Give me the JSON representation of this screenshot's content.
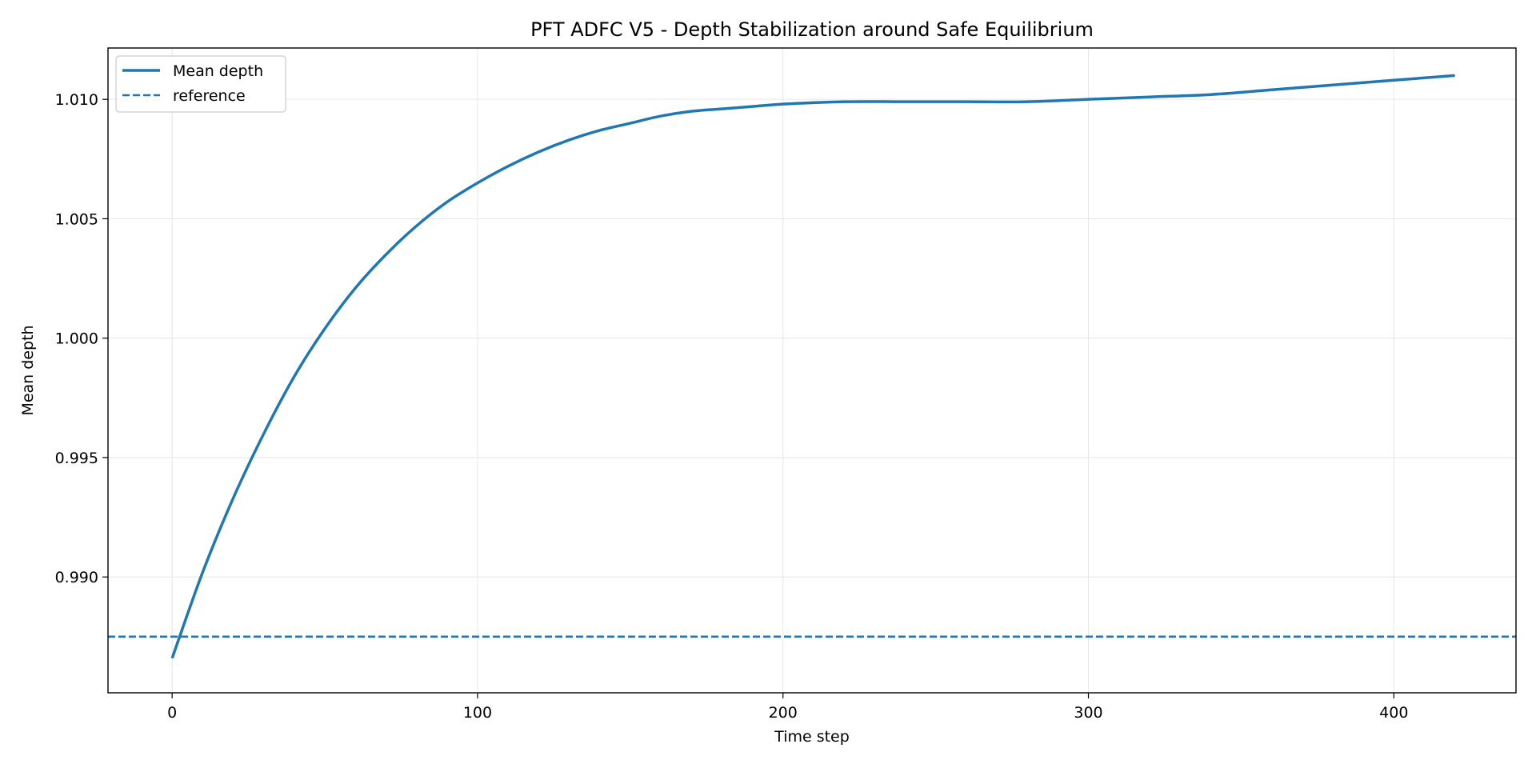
{
  "chart_data": {
    "type": "line",
    "title": "PFT ADFC V5 - Depth Stabilization around Safe Equilibrium",
    "xlabel": "Time step",
    "ylabel": "Mean depth",
    "xlim": [
      -21,
      440
    ],
    "ylim": [
      0.98515,
      1.01215
    ],
    "xticks": [
      0,
      100,
      200,
      300,
      400
    ],
    "yticks": [
      0.99,
      0.995,
      1.0,
      1.005,
      1.01
    ],
    "ytick_labels": [
      "0.990",
      "0.995",
      "1.000",
      "1.005",
      "1.010"
    ],
    "grid": true,
    "legend_position": "top-left",
    "series": [
      {
        "name": "Mean depth",
        "style": "solid",
        "color": "#1f77b4",
        "x": [
          0,
          10,
          20,
          30,
          40,
          50,
          60,
          70,
          80,
          90,
          100,
          110,
          120,
          130,
          140,
          150,
          160,
          170,
          180,
          190,
          200,
          220,
          240,
          260,
          280,
          300,
          320,
          340,
          360,
          380,
          400,
          420
        ],
        "y": [
          0.9866,
          0.9902,
          0.9933,
          0.996,
          0.9984,
          1.0004,
          1.0021,
          1.0035,
          1.0047,
          1.0057,
          1.0065,
          1.0072,
          1.0078,
          1.0083,
          1.0087,
          1.009,
          1.0093,
          1.0095,
          1.0096,
          1.0097,
          1.0098,
          1.0099,
          1.0099,
          1.0099,
          1.0099,
          1.01,
          1.0101,
          1.0102,
          1.0104,
          1.0106,
          1.0108,
          1.011
        ]
      },
      {
        "name": "reference",
        "style": "dashed",
        "color": "#1f77b4",
        "y_constant": 0.9875
      }
    ]
  }
}
